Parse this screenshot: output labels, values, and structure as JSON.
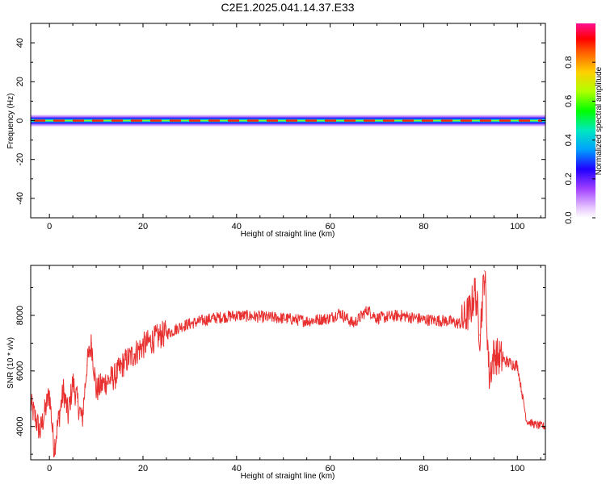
{
  "title": "C2E1.2025.041.14.37.E33",
  "chart_data": [
    {
      "type": "heatmap",
      "xlabel": "Height of straight line (km)",
      "ylabel": "Frequency (Hz)",
      "xlim": [
        -4,
        106
      ],
      "ylim": [
        -50,
        50
      ],
      "xticks": [
        0,
        20,
        40,
        60,
        80,
        100
      ],
      "yticks": [
        -40,
        -20,
        0,
        20,
        40
      ],
      "band_center_hz": 0,
      "band_halfwidth_hz": 3,
      "colorbar": {
        "label": "Normalized spectral amplitude",
        "ticks": [
          0.0,
          0.2,
          0.4,
          0.6,
          0.8
        ],
        "range": [
          0,
          1
        ]
      }
    },
    {
      "type": "line",
      "xlabel": "Height of straight line (km)",
      "ylabel": "SNR (10 * v/v)",
      "xlim": [
        -4,
        106
      ],
      "ylim": [
        2800,
        9800
      ],
      "xticks": [
        0,
        20,
        40,
        60,
        80,
        100
      ],
      "yticks": [
        4000,
        6000,
        8000
      ],
      "series": [
        {
          "color": "#e83030",
          "x": [
            -4,
            -2,
            0,
            1,
            2,
            3,
            4,
            5,
            6,
            7,
            8,
            9,
            10,
            12,
            14,
            16,
            18,
            20,
            22,
            24,
            26,
            28,
            30,
            35,
            40,
            45,
            50,
            55,
            60,
            62,
            65,
            68,
            70,
            75,
            80,
            85,
            88,
            90,
            91,
            92,
            93,
            94,
            95,
            96,
            98,
            100,
            101,
            102,
            104,
            106
          ],
          "y": [
            4800,
            3800,
            5200,
            3200,
            4300,
            5300,
            4400,
            5600,
            4900,
            4200,
            6200,
            7000,
            5300,
            5600,
            5800,
            6300,
            6600,
            6900,
            7100,
            7300,
            7400,
            7600,
            7700,
            7900,
            8000,
            7950,
            7900,
            7800,
            7900,
            8100,
            7700,
            8200,
            7900,
            8000,
            7850,
            7800,
            7700,
            8200,
            8900,
            7300,
            9600,
            5800,
            6600,
            6500,
            6300,
            6200,
            5200,
            4200,
            4050,
            4000
          ]
        }
      ]
    }
  ]
}
